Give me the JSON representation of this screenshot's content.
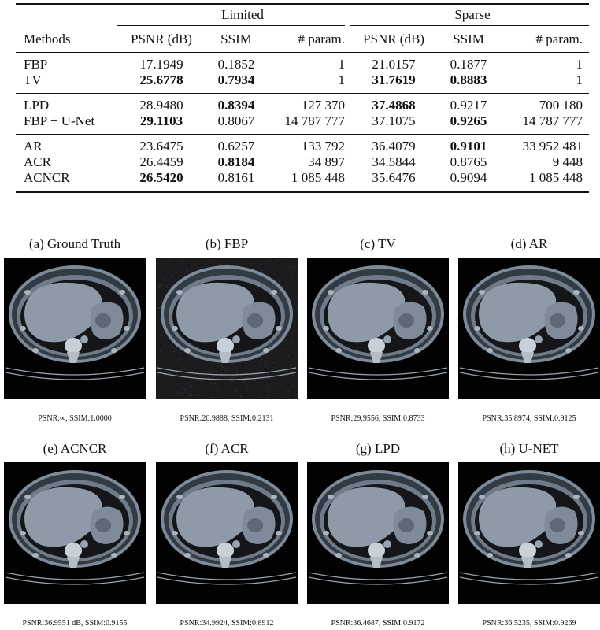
{
  "table": {
    "groups": [
      "Limited",
      "Sparse"
    ],
    "columns": [
      "Methods",
      "PSNR (dB)",
      "SSIM",
      "# param.",
      "PSNR (dB)",
      "SSIM",
      "# param."
    ],
    "rows": [
      [
        "FBP",
        "17.1949",
        "0.1852",
        "1",
        "21.0157",
        "0.1877",
        "1"
      ],
      [
        "TV",
        "25.6778",
        "0.7934",
        "1",
        "31.7619",
        "0.8883",
        "1"
      ],
      [
        "LPD",
        "28.9480",
        "0.8394",
        "127 370",
        "37.4868",
        "0.9217",
        "700 180"
      ],
      [
        "FBP + U-Net",
        "29.1103",
        "0.8067",
        "14 787 777",
        "37.1075",
        "0.9265",
        "14 787 777"
      ],
      [
        "AR",
        "23.6475",
        "0.6257",
        "133 792",
        "36.4079",
        "0.9101",
        "33 952 481"
      ],
      [
        "ACR",
        "26.4459",
        "0.8184",
        "34 897",
        "34.5844",
        "0.8765",
        "9 448"
      ],
      [
        "ACNCR",
        "26.5420",
        "0.8161",
        "1 085 448",
        "35.6476",
        "0.9094",
        "1 085 448"
      ]
    ]
  },
  "figures": [
    {
      "title": "(a) Ground Truth",
      "caption": "PSNR:∞, SSIM:1.0000"
    },
    {
      "title": "(b) FBP",
      "caption": "PSNR:20.9888, SSIM:0.2131"
    },
    {
      "title": "(c) TV",
      "caption": "PSNR:29.9556, SSIM:0.8733"
    },
    {
      "title": "(d) AR",
      "caption": "PSNR:35.8974, SSIM:0.9125"
    },
    {
      "title": "(e) ACNCR",
      "caption": "PSNR:36.9551 dB, SSIM:0.9155"
    },
    {
      "title": "(f) ACR",
      "caption": "PSNR:34.9924, SSIM:0.8912"
    },
    {
      "title": "(g) LPD",
      "caption": "PSNR:36.4687, SSIM:0.9172"
    },
    {
      "title": "(h) U-NET",
      "caption": "PSNR:36.5235, SSIM:0.9269"
    }
  ]
}
